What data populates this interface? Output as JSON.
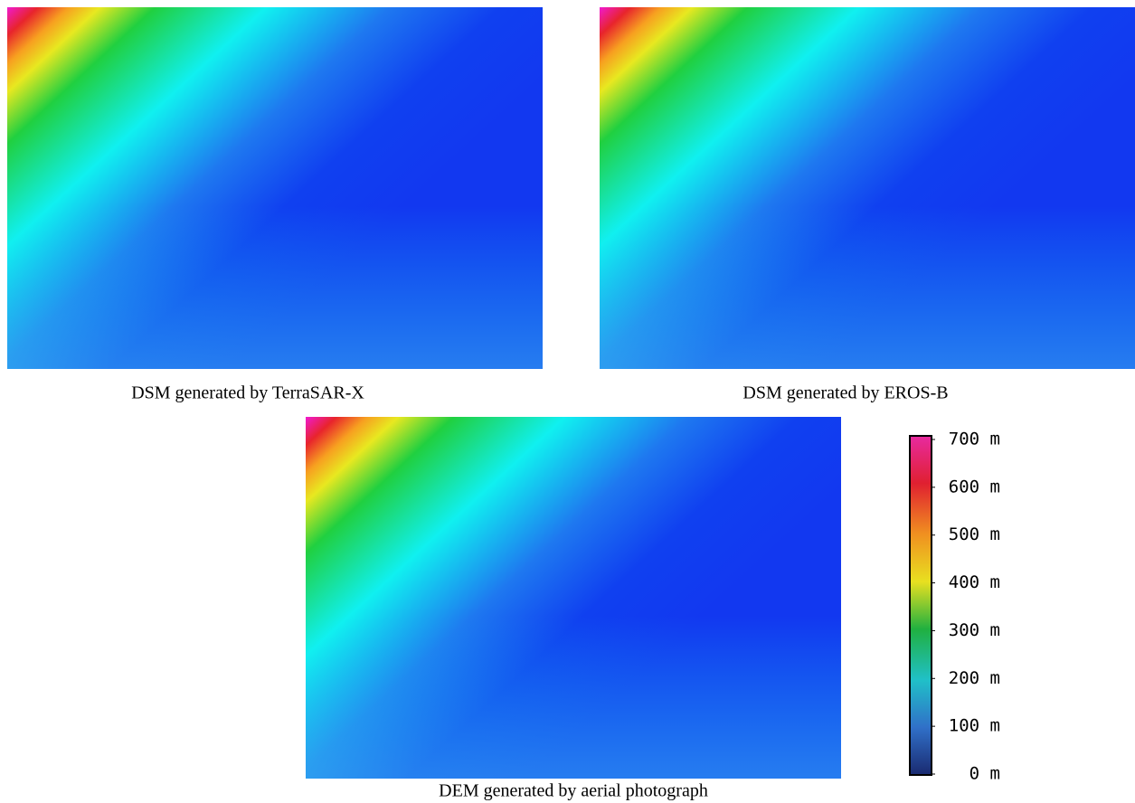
{
  "panels": [
    {
      "caption": "DSM generated by TerraSAR-X"
    },
    {
      "caption": "DSM generated by EROS-B"
    },
    {
      "caption": "DEM generated by aerial photograph"
    }
  ],
  "colorbar": {
    "ticks": [
      {
        "value": 0,
        "label": "0 m"
      },
      {
        "value": 100,
        "label": "100 m"
      },
      {
        "value": 200,
        "label": "200 m"
      },
      {
        "value": 300,
        "label": "300 m"
      },
      {
        "value": 400,
        "label": "400 m"
      },
      {
        "value": 500,
        "label": "500 m"
      },
      {
        "value": 600,
        "label": "600 m"
      },
      {
        "value": 700,
        "label": "700 m"
      }
    ]
  }
}
